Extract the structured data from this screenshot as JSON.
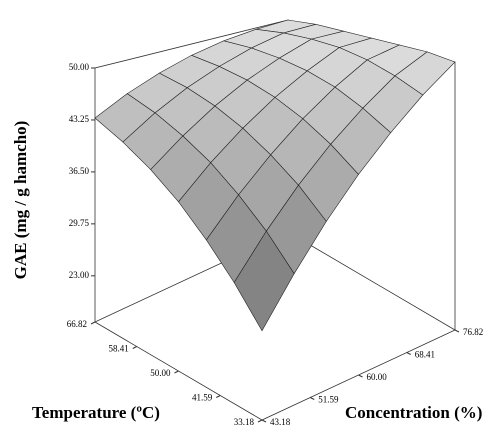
{
  "chart_data": {
    "type": "surface3d",
    "zlabel": "GAE (mg / g hamcho)",
    "xlabel": "Temperature (ºC)",
    "ylabel": "Concentration (%)",
    "xlim": [
      33.18,
      66.82
    ],
    "ylim": [
      43.18,
      76.82
    ],
    "zlim": [
      17,
      50
    ],
    "xticks": [
      {
        "value": 66.82,
        "label": "66.82"
      },
      {
        "value": 58.41,
        "label": "58.41"
      },
      {
        "value": 50,
        "label": "50.00"
      },
      {
        "value": 41.59,
        "label": "41.59"
      },
      {
        "value": 33.18,
        "label": "33.18"
      }
    ],
    "yticks": [
      {
        "value": 43.18,
        "label": "43.18"
      },
      {
        "value": 51.59,
        "label": "51.59"
      },
      {
        "value": 60,
        "label": "60.00"
      },
      {
        "value": 68.41,
        "label": "68.41"
      },
      {
        "value": 76.82,
        "label": "76.82"
      }
    ],
    "zticks": [
      {
        "value": 23,
        "label": "23.00"
      },
      {
        "value": 29.75,
        "label": "29.75"
      },
      {
        "value": 36.5,
        "label": "36.50"
      },
      {
        "value": 43.25,
        "label": "43.25"
      },
      {
        "value": 50,
        "label": "50.00"
      }
    ],
    "surface": {
      "x": [
        33.18,
        38.79,
        44.39,
        50.0,
        55.61,
        61.21,
        66.82
      ],
      "y": [
        43.18,
        48.79,
        54.39,
        60.0,
        65.61,
        71.21,
        76.82
      ],
      "z": [
        [
          26.5,
          31.3,
          35.8,
          39.9,
          43.6,
          47.0,
          50.0
        ],
        [
          30.3,
          34.7,
          38.7,
          42.3,
          45.5,
          48.4,
          50.4
        ],
        [
          33.7,
          37.6,
          41.1,
          44.3,
          47.1,
          49.5,
          50.4
        ],
        [
          36.8,
          40.2,
          43.2,
          45.9,
          48.2,
          50.2,
          50.4
        ],
        [
          39.4,
          42.3,
          44.9,
          47.1,
          48.9,
          50.4,
          50.4
        ],
        [
          41.6,
          44.1,
          46.2,
          47.9,
          49.3,
          50.3,
          50.4
        ],
        [
          43.5,
          45.5,
          47.1,
          48.4,
          49.3,
          49.8,
          50.0
        ]
      ]
    }
  }
}
